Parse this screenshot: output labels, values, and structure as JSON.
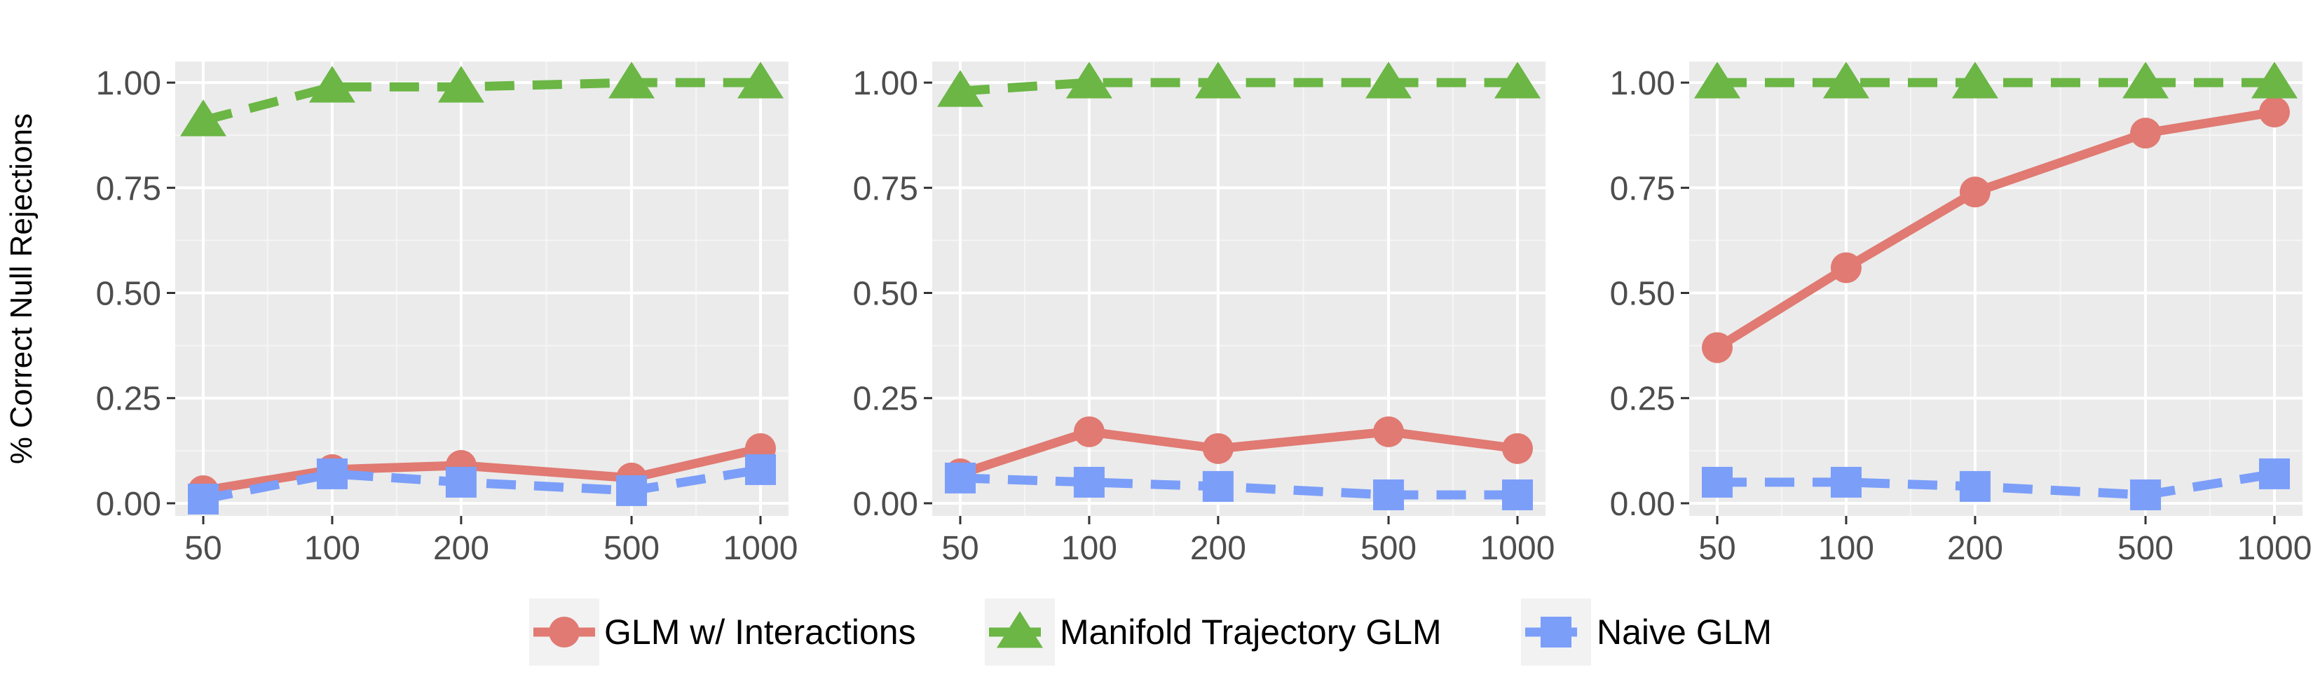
{
  "chart_data": {
    "type": "line",
    "ylabel": "% Correct Null Rejections",
    "x_scale": "log",
    "x_ticks": [
      50,
      100,
      200,
      500,
      1000
    ],
    "y_ticks": [
      0.0,
      0.25,
      0.5,
      0.75,
      1.0
    ],
    "y_tick_labels": [
      "0.00",
      "0.25",
      "0.50",
      "0.75",
      "1.00"
    ],
    "x_tick_labels": [
      "50",
      "100",
      "200",
      "500",
      "1000"
    ],
    "ylim": [
      -0.03,
      1.05
    ],
    "grid": true,
    "legend_position": "bottom",
    "legend": [
      {
        "name": "GLM w/ Interactions",
        "marker": "circle",
        "line": "solid",
        "color": "#E07A72"
      },
      {
        "name": "Manifold Trajectory GLM",
        "marker": "triangle",
        "line": "dashed",
        "color": "#6BB645"
      },
      {
        "name": "Naive GLM",
        "marker": "square",
        "line": "dashed",
        "color": "#7B9EF9"
      }
    ],
    "panels": [
      {
        "x": [
          50,
          100,
          200,
          500,
          1000
        ],
        "series": [
          {
            "values": [
              0.03,
              0.08,
              0.09,
              0.06,
              0.13
            ]
          },
          {
            "values": [
              0.91,
              0.99,
              0.99,
              1.0,
              1.0
            ]
          },
          {
            "values": [
              0.01,
              0.07,
              0.05,
              0.03,
              0.08
            ]
          }
        ]
      },
      {
        "x": [
          50,
          100,
          200,
          500,
          1000
        ],
        "series": [
          {
            "values": [
              0.07,
              0.17,
              0.13,
              0.17,
              0.13
            ]
          },
          {
            "values": [
              0.98,
              1.0,
              1.0,
              1.0,
              1.0
            ]
          },
          {
            "values": [
              0.06,
              0.05,
              0.04,
              0.02,
              0.02
            ]
          }
        ]
      },
      {
        "x": [
          50,
          100,
          200,
          500,
          1000
        ],
        "series": [
          {
            "values": [
              0.37,
              0.56,
              0.74,
              0.88,
              0.93
            ]
          },
          {
            "values": [
              1.0,
              1.0,
              1.0,
              1.0,
              1.0
            ]
          },
          {
            "values": [
              0.05,
              0.05,
              0.04,
              0.02,
              0.07
            ]
          }
        ]
      }
    ]
  }
}
